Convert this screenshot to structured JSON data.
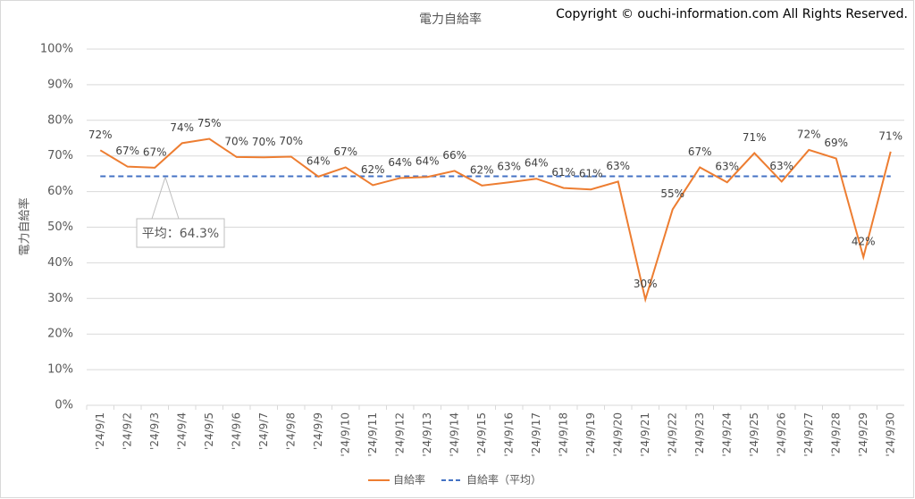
{
  "chart_data": {
    "type": "line",
    "title": "電力自給率",
    "copyright": "Copyright © ouchi-information.com All Rights Reserved.",
    "y_label": "電力自給率",
    "categories": [
      "'24/9/1",
      "'24/9/2",
      "'24/9/3",
      "'24/9/4",
      "'24/9/5",
      "'24/9/6",
      "'24/9/7",
      "'24/9/8",
      "'24/9/9",
      "'24/9/10",
      "'24/9/11",
      "'24/9/12",
      "'24/9/13",
      "'24/9/14",
      "'24/9/15",
      "'24/9/16",
      "'24/9/17",
      "'24/9/18",
      "'24/9/19",
      "'24/9/20",
      "'24/9/21",
      "'24/9/22",
      "'24/9/23",
      "'24/9/24",
      "'24/9/25",
      "'24/9/26",
      "'24/9/27",
      "'24/9/28",
      "'24/9/29",
      "'24/9/30"
    ],
    "series": [
      {
        "name": "自給率",
        "color": "#ed7d31",
        "values": [
          71.6,
          67.0,
          66.7,
          73.6,
          74.8,
          69.7,
          69.6,
          69.8,
          64.2,
          66.8,
          61.8,
          63.8,
          64.1,
          65.8,
          61.7,
          62.6,
          63.6,
          61.0,
          60.6,
          62.8,
          29.7,
          55.0,
          66.8,
          62.6,
          70.8,
          62.8,
          71.7,
          69.3,
          41.6,
          71.2
        ],
        "value_labels": [
          "72%",
          "67%",
          "67%",
          "74%",
          "75%",
          "70%",
          "70%",
          "70%",
          "64%",
          "67%",
          "62%",
          "64%",
          "64%",
          "66%",
          "62%",
          "63%",
          "64%",
          "61%",
          "61%",
          "63%",
          "30%",
          "55%",
          "67%",
          "63%",
          "71%",
          "63%",
          "72%",
          "69%",
          "42%",
          "71%"
        ]
      }
    ],
    "average": {
      "name": "自給率（平均）",
      "value": 64.3,
      "label": "平均：64.3%",
      "color": "#4472c4"
    },
    "ylim": [
      0,
      100
    ],
    "yticks": [
      {
        "value": 0,
        "label": "0%"
      },
      {
        "value": 10,
        "label": "10%"
      },
      {
        "value": 20,
        "label": "20%"
      },
      {
        "value": 30,
        "label": "30%"
      },
      {
        "value": 40,
        "label": "40%"
      },
      {
        "value": 50,
        "label": "50%"
      },
      {
        "value": 60,
        "label": "60%"
      },
      {
        "value": 70,
        "label": "70%"
      },
      {
        "value": 80,
        "label": "80%"
      },
      {
        "value": 90,
        "label": "90%"
      },
      {
        "value": 100,
        "label": "100%"
      }
    ],
    "grid": true
  }
}
